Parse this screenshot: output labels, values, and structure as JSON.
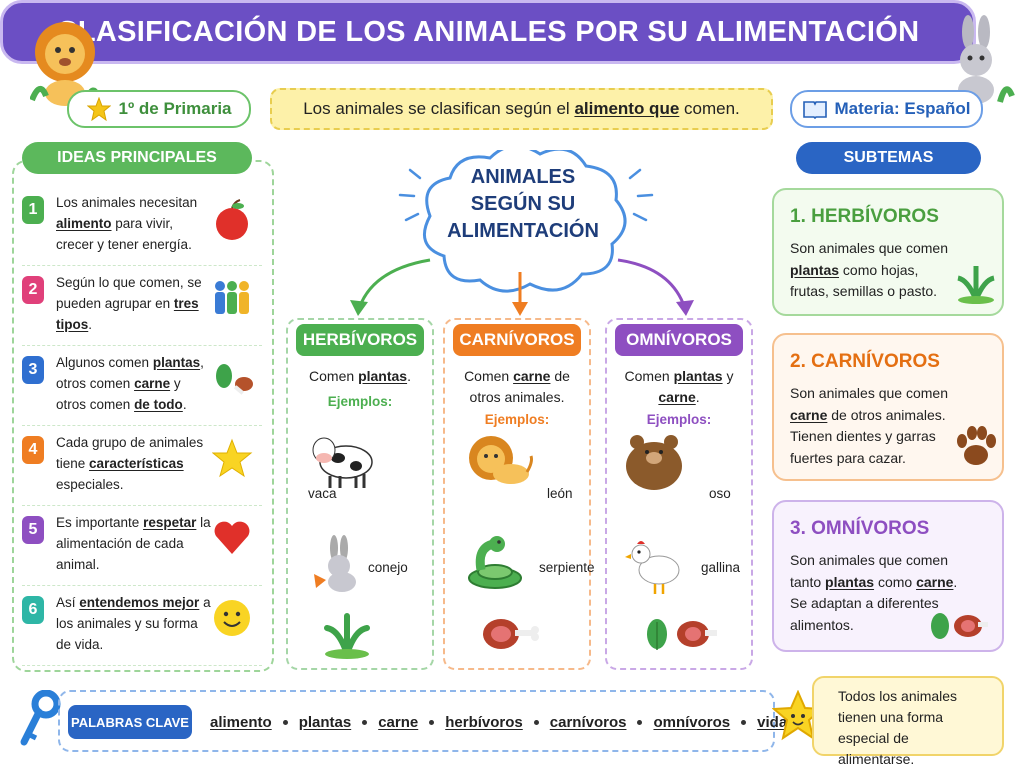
{
  "header": {
    "title": "CLASIFICACIÓN DE LOS ANIMALES POR SU ALIMENTACIÓN",
    "grade": "1º de Primaria",
    "banner": [
      "Los animales se clasifican según el",
      "alimento que",
      "comen."
    ],
    "subject": "Materia: Español"
  },
  "ideas": {
    "title": "IDEAS PRINCIPALES",
    "items": [
      {
        "number": "1",
        "text": [
          "Los animales necesitan",
          "alimento",
          "para vivir, crecer y tener energía."
        ]
      },
      {
        "number": "2",
        "text": [
          "Según lo que comen, se pueden agrupar en",
          "tres tipos",
          "."
        ]
      },
      {
        "number": "3",
        "text": [
          "Algunos comen",
          "plantas",
          ", otros comen",
          "carne",
          "y otros comen",
          "de todo",
          "."
        ]
      },
      {
        "number": "4",
        "text": [
          "Cada grupo de animales tiene",
          "características",
          "especiales."
        ]
      },
      {
        "number": "5",
        "text": [
          "Es importante",
          "respetar",
          "la alimentación de cada animal."
        ]
      },
      {
        "number": "6",
        "text": [
          "Así",
          "entendemos mejor",
          "a los animales y su forma de vida."
        ]
      }
    ]
  },
  "center": {
    "label": "ANIMALES SEGÚN SU ALIMENTACIÓN"
  },
  "groups": [
    {
      "title": "HERBÍVOROS",
      "text": [
        "Comen",
        "plantas",
        "."
      ],
      "examples_label": "Ejemplos:",
      "animals": [
        "vaca",
        "conejo"
      ]
    },
    {
      "title": "CARNÍVOROS",
      "text": [
        "Comen",
        "carne",
        "de otros animales."
      ],
      "examples_label": "Ejemplos:",
      "animals": [
        "león",
        "serpiente"
      ]
    },
    {
      "title": "OMNÍVOROS",
      "text": [
        "Comen",
        "plantas",
        "y",
        "carne",
        "."
      ],
      "examples_label": "Ejemplos:",
      "animals": [
        "oso",
        "gallina"
      ]
    }
  ],
  "subtopics": {
    "title": "SUBTEMAS",
    "items": [
      {
        "title": "1. HERBÍVOROS",
        "text": [
          "Son animales que comen",
          "plantas",
          "como hojas, frutas, semillas o pasto."
        ]
      },
      {
        "title": "2. CARNÍVOROS",
        "text": [
          "Son animales que comen",
          "carne",
          "de otros animales. Tienen dientes y garras fuertes para cazar."
        ]
      },
      {
        "title": "3. OMNÍVOROS",
        "text": [
          "Son animales que comen tanto",
          "plantas",
          "como",
          "carne",
          ". Se adaptan a diferentes alimentos."
        ]
      }
    ]
  },
  "keywords": {
    "title": "PALABRAS CLAVE",
    "words": [
      "alimento",
      "plantas",
      "carne",
      "herbívoros",
      "carnívoros",
      "omnívoros",
      "vida"
    ]
  },
  "note": "Todos los animales tienen una forma especial de alimentarse."
}
